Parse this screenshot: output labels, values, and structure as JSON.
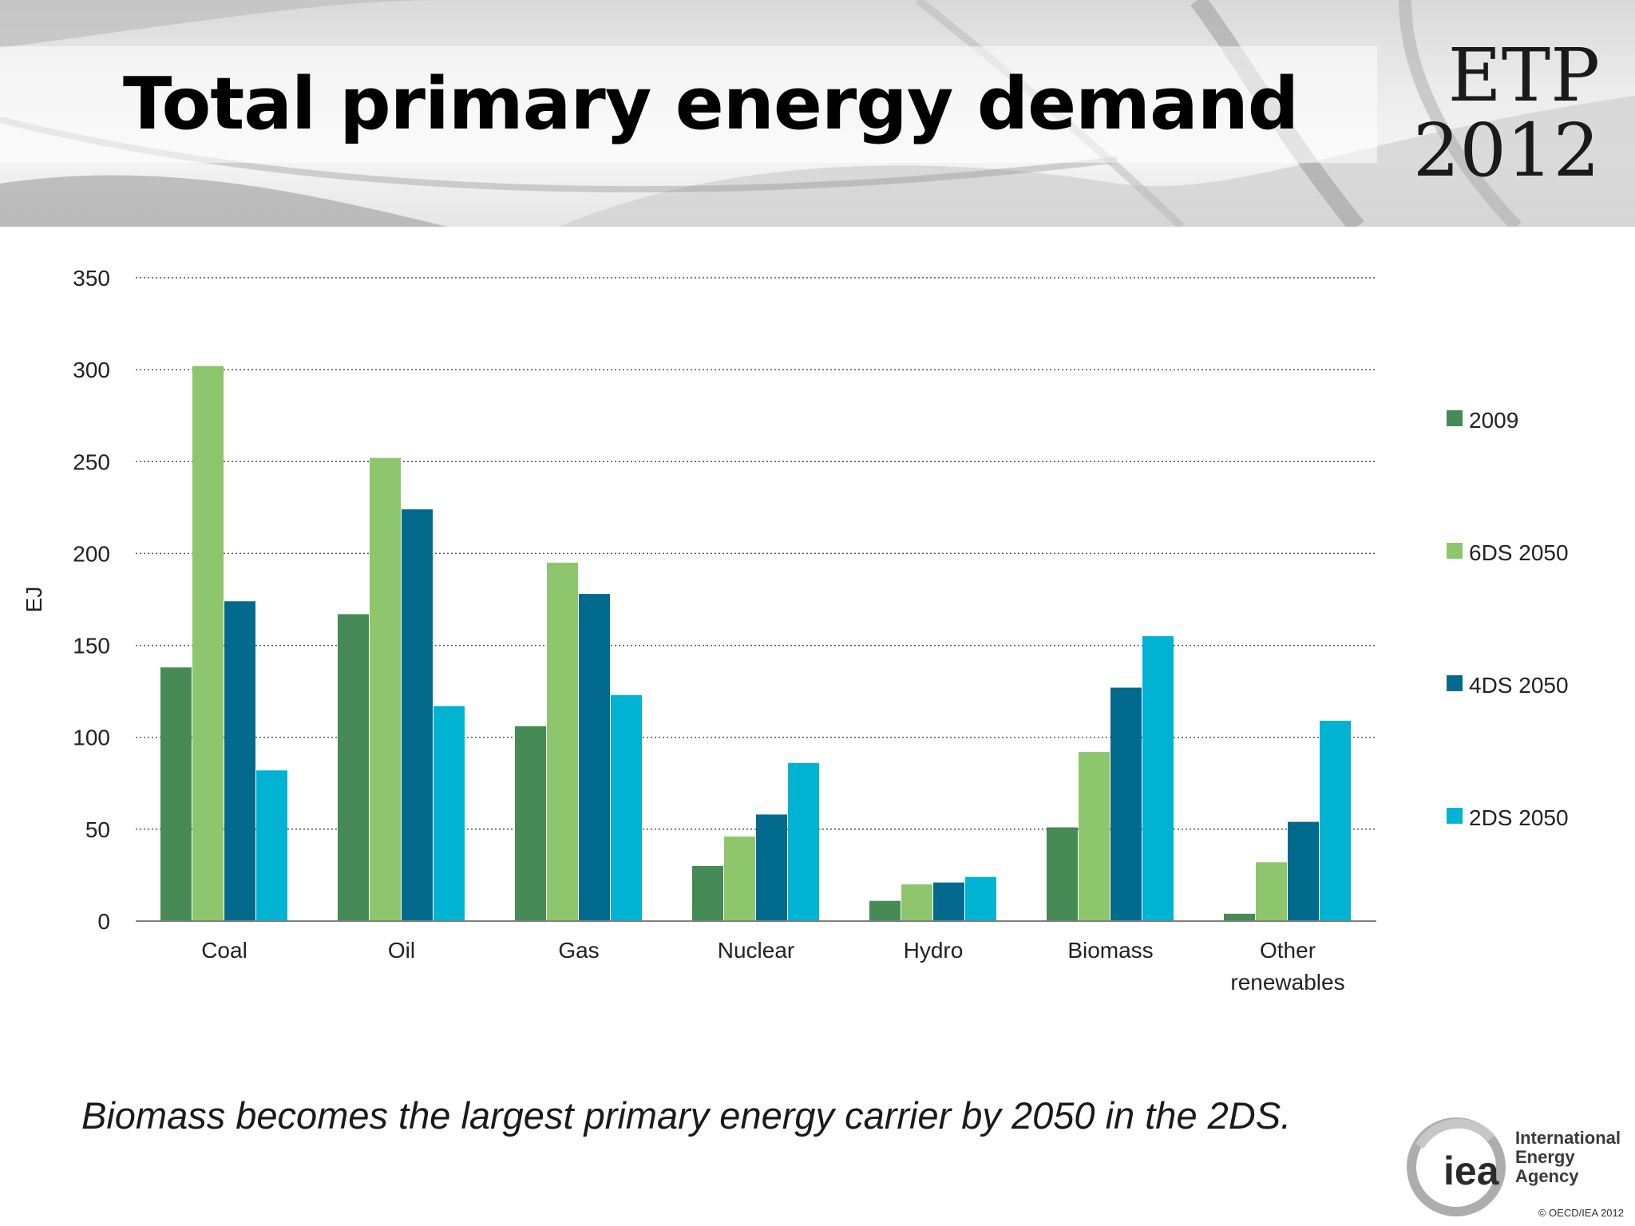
{
  "header": {
    "title": "Total primary energy demand",
    "logo_line1": "ETP",
    "logo_line2": "2012"
  },
  "caption": "Biomass becomes the largest primary energy carrier by 2050 in the 2DS.",
  "footer": {
    "iea_mark": "iea",
    "iea_name_line1": "International",
    "iea_name_line2": "Energy Agency",
    "copyright": "© OECD/IEA 2012"
  },
  "chart_data": {
    "type": "bar",
    "title": "",
    "xlabel": "",
    "ylabel": "EJ",
    "ylim": [
      0,
      350
    ],
    "yticks": [
      0,
      50,
      100,
      150,
      200,
      250,
      300,
      350
    ],
    "grid": true,
    "legend_position": "right",
    "categories": [
      "Coal",
      "Oil",
      "Gas",
      "Nuclear",
      "Hydro",
      "Biomass",
      "Other renewables"
    ],
    "category_lines": [
      [
        "Coal"
      ],
      [
        "Oil"
      ],
      [
        "Gas"
      ],
      [
        "Nuclear"
      ],
      [
        "Hydro"
      ],
      [
        "Biomass"
      ],
      [
        "Other",
        "renewables"
      ]
    ],
    "series": [
      {
        "name": "2009",
        "color": "#468a55",
        "values": [
          138,
          167,
          106,
          30,
          11,
          51,
          4
        ]
      },
      {
        "name": "6DS 2050",
        "color": "#8dc66c",
        "values": [
          302,
          252,
          195,
          46,
          20,
          92,
          32
        ]
      },
      {
        "name": "4DS 2050",
        "color": "#026a8d",
        "values": [
          174,
          224,
          178,
          58,
          21,
          127,
          54
        ]
      },
      {
        "name": "2DS 2050",
        "color": "#00b3d3",
        "values": [
          82,
          117,
          123,
          86,
          24,
          155,
          109
        ]
      }
    ]
  }
}
